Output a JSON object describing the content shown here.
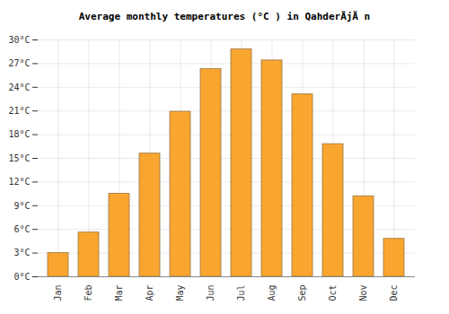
{
  "chart_data": {
    "type": "bar",
    "title": "Average monthly temperatures (°C ) in QahderÃ­jÃ n",
    "categories": [
      "Jan",
      "Feb",
      "Mar",
      "Apr",
      "May",
      "Jun",
      "Jul",
      "Aug",
      "Sep",
      "Oct",
      "Nov",
      "Dec"
    ],
    "values": [
      3.0,
      5.6,
      10.5,
      15.6,
      20.9,
      26.3,
      28.8,
      27.4,
      23.1,
      16.8,
      10.2,
      4.8
    ],
    "color": "#f9a630",
    "ylim": [
      0,
      30
    ],
    "yticks": [
      {
        "value": 0,
        "label": "0°C"
      },
      {
        "value": 3,
        "label": "3°C"
      },
      {
        "value": 6,
        "label": "6°C"
      },
      {
        "value": 9,
        "label": "9°C"
      },
      {
        "value": 12,
        "label": "12°C"
      },
      {
        "value": 15,
        "label": "15°C"
      },
      {
        "value": 18,
        "label": "18°C"
      },
      {
        "value": 21,
        "label": "21°C"
      },
      {
        "value": 24,
        "label": "24°C"
      },
      {
        "value": 27,
        "label": "27°C"
      },
      {
        "value": 30,
        "label": "30°C"
      }
    ],
    "grid": true
  }
}
